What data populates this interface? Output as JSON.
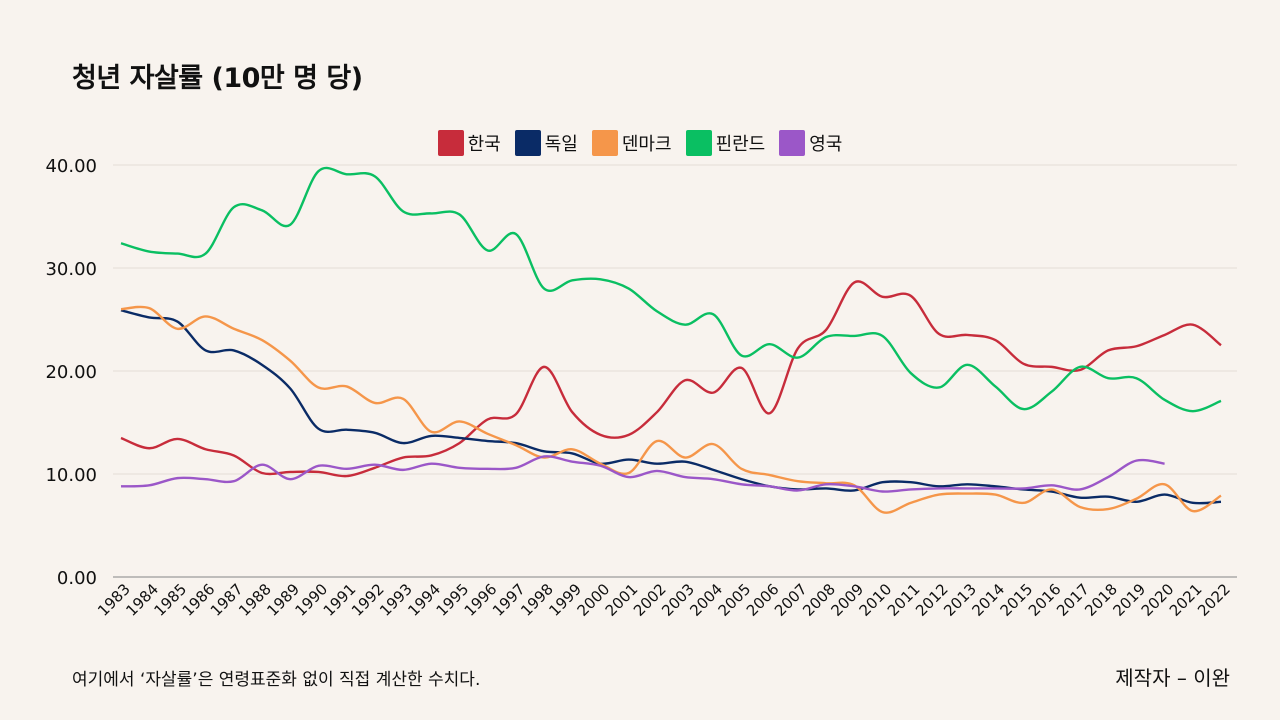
{
  "title": "청년 자살률 (10만 명 당)",
  "note": "여기에서 ‘자살률’은 연령표준화 없이 직접 계산한 수치다.",
  "credit": "제작자 – 이완",
  "chart_data": {
    "type": "line",
    "title": "청년 자살률 (10만 명 당)",
    "xlabel": "",
    "ylabel": "",
    "ylim": [
      0,
      40
    ],
    "yticks": [
      "0.00",
      "10.00",
      "20.00",
      "30.00",
      "40.00"
    ],
    "grid": true,
    "legend_position": "top-center",
    "x": [
      "1983",
      "1984",
      "1985",
      "1986",
      "1987",
      "1988",
      "1989",
      "1990",
      "1991",
      "1992",
      "1993",
      "1994",
      "1995",
      "1996",
      "1997",
      "1998",
      "1999",
      "2000",
      "2001",
      "2002",
      "2003",
      "2004",
      "2005",
      "2006",
      "2007",
      "2008",
      "2009",
      "2010",
      "2011",
      "2012",
      "2013",
      "2014",
      "2015",
      "2016",
      "2017",
      "2018",
      "2019",
      "2020",
      "2021",
      "2022"
    ],
    "series": [
      {
        "name": "한국",
        "color": "#c72c3b",
        "values": [
          13.5,
          12.5,
          13.4,
          12.4,
          11.8,
          10.1,
          10.2,
          10.2,
          9.8,
          10.6,
          11.6,
          11.8,
          13.0,
          15.3,
          15.8,
          20.4,
          16.0,
          13.8,
          13.8,
          16.0,
          19.1,
          17.9,
          20.3,
          15.9,
          22.2,
          24.0,
          28.6,
          27.2,
          27.3,
          23.6,
          23.5,
          23.0,
          20.7,
          20.4,
          20.1,
          22.0,
          22.4,
          23.5,
          24.5,
          22.5
        ]
      },
      {
        "name": "독일",
        "color": "#0a2b66",
        "values": [
          25.9,
          25.2,
          24.8,
          22.0,
          22.0,
          20.6,
          18.3,
          14.4,
          14.3,
          14.0,
          13.0,
          13.7,
          13.5,
          13.2,
          13.0,
          12.2,
          12.0,
          11.0,
          11.4,
          11.0,
          11.2,
          10.4,
          9.5,
          8.8,
          8.5,
          8.6,
          8.4,
          9.2,
          9.2,
          8.8,
          9.0,
          8.8,
          8.5,
          8.3,
          7.7,
          7.8,
          7.3,
          8.0,
          7.2,
          7.3
        ]
      },
      {
        "name": "덴마크",
        "color": "#f5964a",
        "values": [
          26.0,
          26.1,
          24.1,
          25.3,
          24.1,
          23.0,
          21.0,
          18.4,
          18.5,
          16.9,
          17.3,
          14.1,
          15.1,
          13.9,
          12.8,
          11.6,
          12.4,
          11.0,
          10.1,
          13.2,
          11.6,
          12.9,
          10.5,
          9.9,
          9.3,
          9.1,
          8.9,
          6.3,
          7.2,
          8.0,
          8.1,
          8.0,
          7.2,
          8.5,
          6.8,
          6.6,
          7.6,
          9.0,
          6.4,
          7.9
        ]
      },
      {
        "name": "핀란드",
        "color": "#0abf62",
        "values": [
          32.4,
          31.6,
          31.4,
          31.4,
          35.9,
          35.6,
          34.2,
          39.4,
          39.1,
          38.9,
          35.5,
          35.3,
          35.2,
          31.7,
          33.3,
          28.0,
          28.8,
          28.9,
          28.0,
          25.8,
          24.5,
          25.5,
          21.5,
          22.6,
          21.3,
          23.3,
          23.4,
          23.4,
          19.8,
          18.4,
          20.6,
          18.5,
          16.3,
          18.0,
          20.4,
          19.3,
          19.3,
          17.2,
          16.1,
          17.1
        ]
      },
      {
        "name": "영국",
        "color": "#9b57c8",
        "values": [
          8.8,
          8.9,
          9.6,
          9.5,
          9.3,
          10.9,
          9.5,
          10.8,
          10.5,
          10.9,
          10.4,
          11.0,
          10.6,
          10.5,
          10.6,
          11.7,
          11.2,
          10.8,
          9.7,
          10.3,
          9.7,
          9.5,
          9.0,
          8.8,
          8.4,
          9.0,
          8.8,
          8.3,
          8.5,
          8.6,
          8.6,
          8.6,
          8.6,
          8.9,
          8.5,
          9.7,
          11.3,
          11.0,
          null,
          null
        ]
      }
    ]
  }
}
